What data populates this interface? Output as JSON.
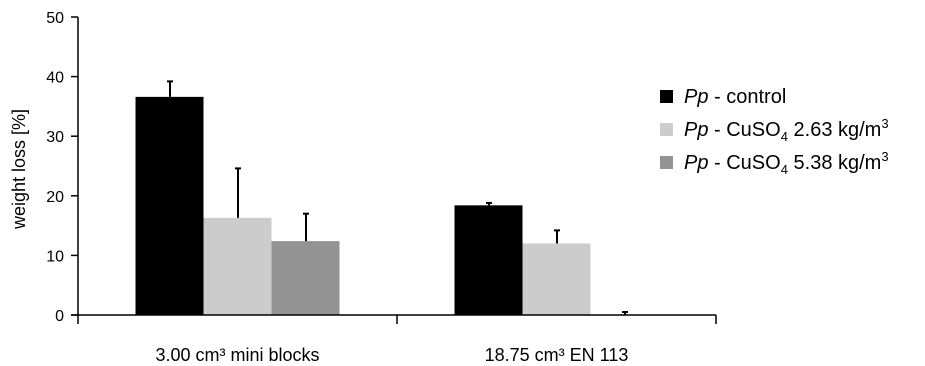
{
  "chart_data": {
    "type": "bar",
    "title": "",
    "xlabel": "",
    "ylabel": "weight loss [%]",
    "ylim": [
      0,
      50
    ],
    "yticks": [
      0,
      10,
      20,
      30,
      40,
      50
    ],
    "categories": [
      "3.00 cm³ mini blocks",
      "18.75 cm³ EN 113"
    ],
    "series": [
      {
        "name_italic": "Pp",
        "name_rest": " - control",
        "name_sub": "",
        "name_tail": "",
        "name_sup": "",
        "color": "#000000",
        "values": [
          36.6,
          18.4
        ],
        "errors": [
          2.6,
          0.4
        ]
      },
      {
        "name_italic": "Pp",
        "name_rest": " - CuSO",
        "name_sub": "4",
        "name_tail": " 2.63 kg/m",
        "name_sup": "3",
        "color": "#cccccc",
        "values": [
          16.3,
          12.0
        ],
        "errors": [
          8.3,
          2.2
        ]
      },
      {
        "name_italic": "Pp",
        "name_rest": " - CuSO",
        "name_sub": "4",
        "name_tail": " 5.38 kg/m",
        "name_sup": "3",
        "color": "#939393",
        "values": [
          12.4,
          0.0
        ],
        "errors": [
          4.6,
          0.5
        ]
      }
    ],
    "grid": false,
    "legend_position": "right"
  }
}
